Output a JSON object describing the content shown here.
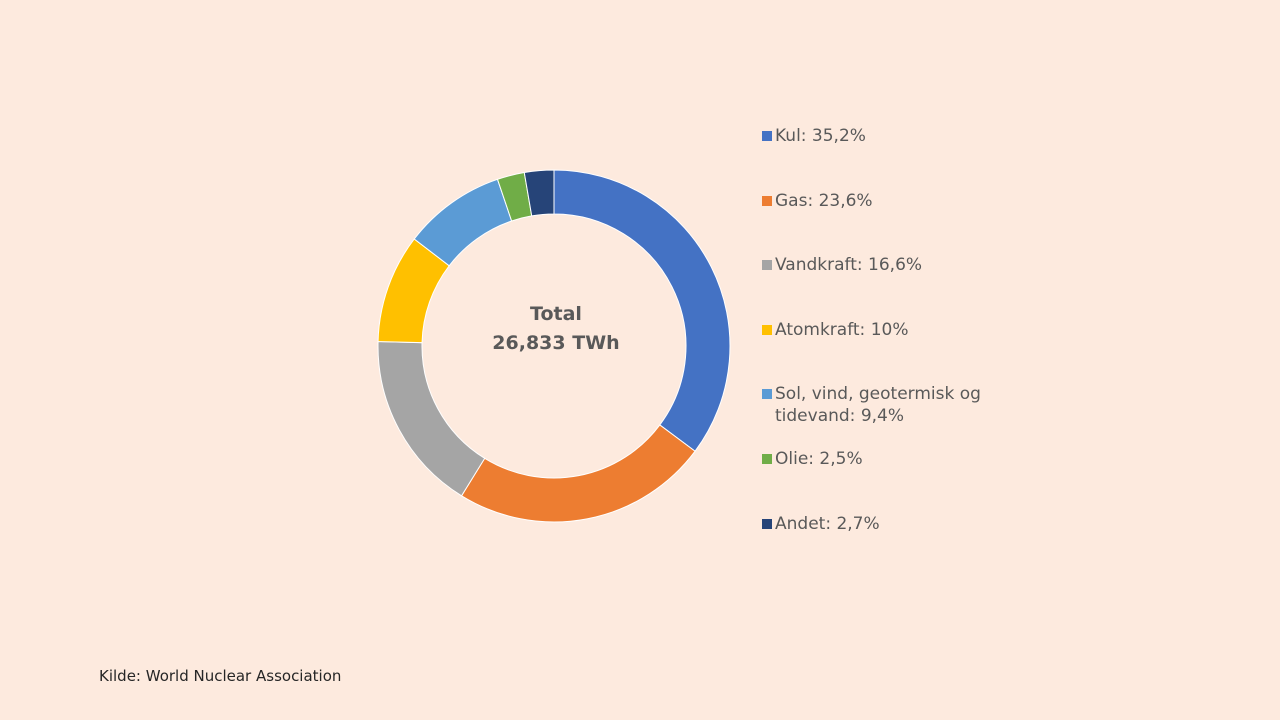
{
  "chart_data": {
    "type": "pie",
    "variant": "donut",
    "center_label": {
      "title": "Total",
      "value": "26,833 TWh"
    },
    "slices": [
      {
        "name": "Kul",
        "value": 35.2,
        "label": "Kul: 35,2%",
        "color": "#4472c4"
      },
      {
        "name": "Gas",
        "value": 23.6,
        "label": "Gas: 23,6%",
        "color": "#ed7d31"
      },
      {
        "name": "Vandkraft",
        "value": 16.6,
        "label": "Vandkraft: 16,6%",
        "color": "#a5a5a5"
      },
      {
        "name": "Atomkraft",
        "value": 10,
        "label": "Atomkraft: 10%",
        "color": "#ffc000"
      },
      {
        "name": "Sol, vind, geotermisk og tidevand",
        "value": 9.4,
        "label": "Sol, vind, geotermisk og tidevand: 9,4%",
        "color": "#5b9bd5"
      },
      {
        "name": "Olie",
        "value": 2.5,
        "label": "Olie: 2,5%",
        "color": "#70ad47"
      },
      {
        "name": "Andet",
        "value": 2.7,
        "label": "Andet: 2,7%",
        "color": "#264478"
      }
    ],
    "legend_placement": "right"
  },
  "source": "Kilde: World Nuclear Association"
}
